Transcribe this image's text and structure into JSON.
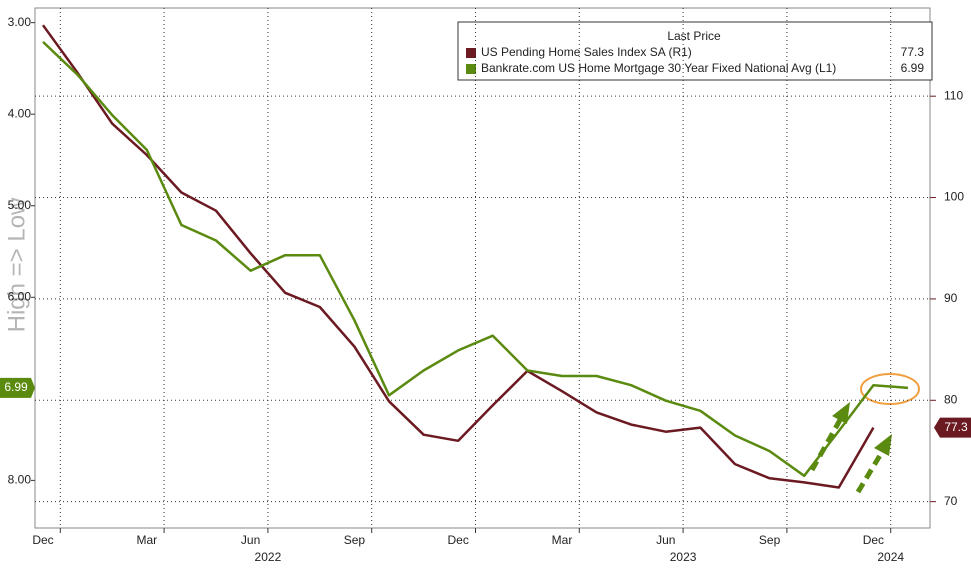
{
  "chart_data": {
    "type": "line",
    "y_axis_title": "High => Low",
    "legend_title": "Last Price",
    "x": [
      "2021-12",
      "2022-01",
      "2022-02",
      "2022-03",
      "2022-04",
      "2022-05",
      "2022-06",
      "2022-07",
      "2022-08",
      "2022-09",
      "2022-10",
      "2022-11",
      "2022-12",
      "2023-01",
      "2023-02",
      "2023-03",
      "2023-04",
      "2023-05",
      "2023-06",
      "2023-07",
      "2023-08",
      "2023-09",
      "2023-10",
      "2023-11",
      "2023-12",
      "2024-01"
    ],
    "xlim": [
      "2021-12",
      "2024-01"
    ],
    "xticks": [
      {
        "value": "2021-12",
        "label": "Dec"
      },
      {
        "value": "2022-03",
        "label": "Mar"
      },
      {
        "value": "2022-06",
        "label": "Jun"
      },
      {
        "value": "2022-09",
        "label": "Sep"
      },
      {
        "value": "2022-12",
        "label": "Dec"
      },
      {
        "value": "2023-03",
        "label": "Mar"
      },
      {
        "value": "2023-06",
        "label": "Jun"
      },
      {
        "value": "2023-09",
        "label": "Sep"
      },
      {
        "value": "2023-12",
        "label": "Dec"
      }
    ],
    "year_ticks": [
      {
        "value": "2022-07",
        "label": "2022"
      },
      {
        "value": "2023-07",
        "label": "2023"
      },
      {
        "value": "2024-01",
        "label": "2024"
      }
    ],
    "ylim": [
      2.84,
      8.52
    ],
    "y_inverted": true,
    "yticks": [
      {
        "value": 3,
        "label": "3.00"
      },
      {
        "value": 4,
        "label": "4.00"
      },
      {
        "value": 5,
        "label": "5.00"
      },
      {
        "value": 6,
        "label": "6.00"
      },
      {
        "value": 8,
        "label": "8.00"
      }
    ],
    "y2lim": [
      67.4,
      118.7
    ],
    "y2ticks": [
      70,
      80,
      90,
      100,
      110
    ],
    "grid": true,
    "series": [
      {
        "name": "US Pending Home Sales Index SA  (R1)",
        "color": "#6b1a22",
        "axis": "y2",
        "values": [
          117,
          112.3,
          107.3,
          104.2,
          100.5,
          98.7,
          94.5,
          90.6,
          89.2,
          85.3,
          79.9,
          76.6,
          76.0,
          79.5,
          82.9,
          80.9,
          78.8,
          77.6,
          76.9,
          77.3,
          73.7,
          72.3,
          71.9,
          71.4,
          77.3,
          null
        ],
        "last_index": 24
      },
      {
        "name": "Bankrate.com US Home Mortgage 30 Year Fixed National Avg  (L1)",
        "color": "#5a8a0f",
        "values": [
          3.21,
          3.57,
          4.01,
          4.39,
          5.21,
          5.38,
          5.71,
          5.54,
          5.54,
          6.25,
          7.07,
          6.8,
          6.58,
          6.42,
          6.8,
          6.86,
          6.86,
          6.96,
          7.13,
          7.24,
          7.51,
          7.68,
          7.95,
          7.46,
          6.96,
          6.99
        ],
        "last_index": 25
      }
    ]
  }
}
